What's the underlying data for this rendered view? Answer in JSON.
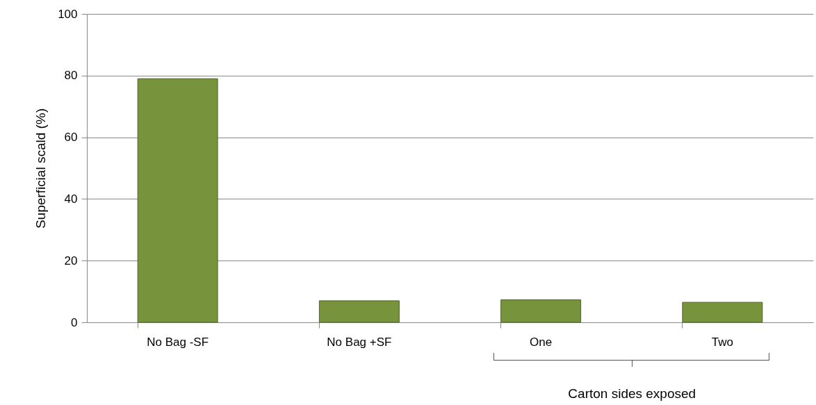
{
  "chart_data": {
    "type": "bar",
    "categories": [
      "No Bag -SF",
      "No Bag +SF",
      "One",
      "Two"
    ],
    "values": [
      79,
      7,
      7.3,
      6.5
    ],
    "color": "#77933c",
    "ylabel": "Superficial scald (%)",
    "xlabel": "Carton sides exposed",
    "ylim": [
      0,
      100
    ],
    "yticks": [
      0,
      20,
      40,
      60,
      80,
      100
    ],
    "grid": "y"
  }
}
